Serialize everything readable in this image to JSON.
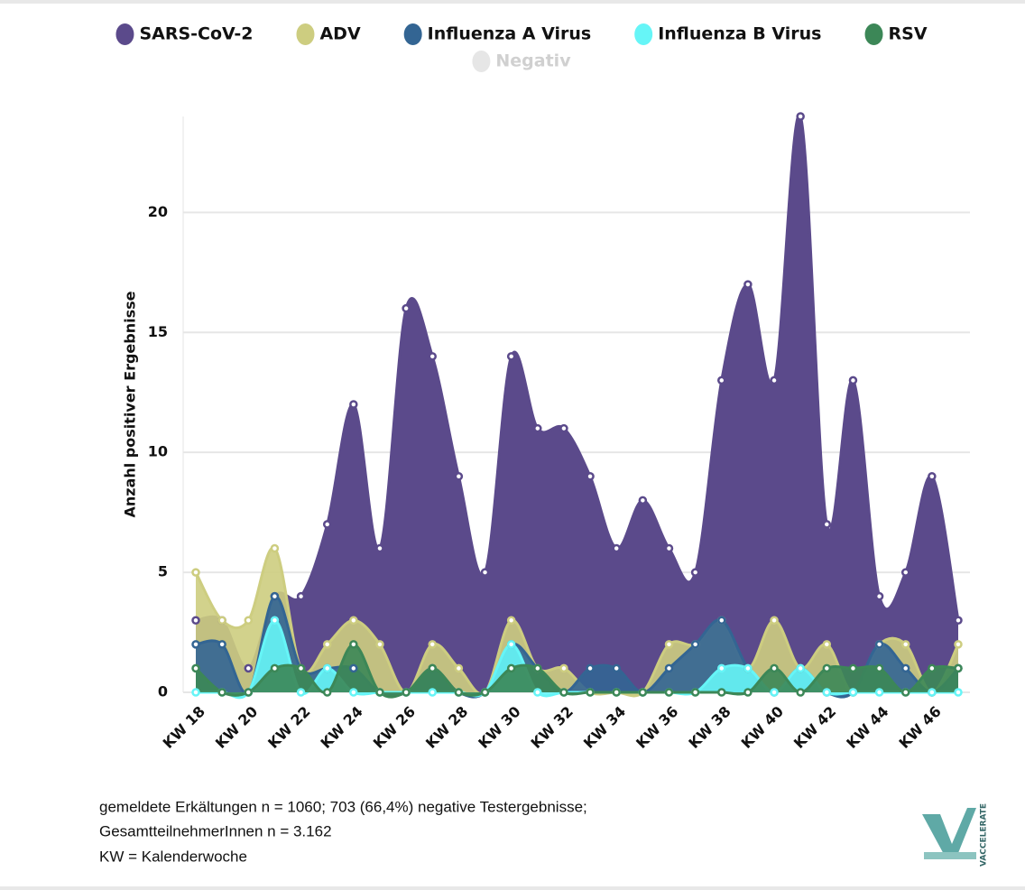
{
  "chart_data": {
    "type": "areaspline",
    "y_label": "Anzahl positiver Ergebnisse",
    "categories": [
      "KW 18",
      null,
      "KW 20",
      null,
      "KW 22",
      null,
      "KW 24",
      null,
      "KW 26",
      null,
      "KW 28",
      null,
      "KW 30",
      null,
      "KW 32",
      null,
      "KW 34",
      null,
      "KW 36",
      null,
      "KW 38",
      null,
      "KW 40",
      null,
      "KW 42",
      null,
      "KW 44",
      null,
      "KW 46",
      null
    ],
    "series": [
      {
        "name": "SARS-CoV-2",
        "color": "#5b4a8b",
        "values": [
          3,
          3,
          1,
          4,
          4,
          7,
          12,
          6,
          16,
          14,
          9,
          5,
          14,
          11,
          11,
          9,
          6,
          8,
          6,
          5,
          13,
          17,
          13,
          24,
          7,
          13,
          4,
          5,
          9,
          3
        ]
      },
      {
        "name": "ADV",
        "color": "#cdcd80",
        "values": [
          5,
          3,
          3,
          6,
          1,
          2,
          3,
          2,
          0,
          2,
          1,
          0,
          3,
          1,
          1,
          0,
          0,
          0,
          2,
          2,
          3,
          1,
          3,
          1,
          2,
          0,
          2,
          2,
          0,
          2
        ]
      },
      {
        "name": "Influenza A Virus",
        "color": "#336593",
        "values": [
          2,
          2,
          0,
          4,
          1,
          1,
          1,
          0,
          0,
          1,
          0,
          0,
          2,
          1,
          0,
          1,
          1,
          0,
          1,
          2,
          3,
          1,
          0,
          1,
          0,
          0,
          2,
          1,
          0,
          1
        ]
      },
      {
        "name": "Influenza B Virus",
        "color": "#66f5f7",
        "values": [
          0,
          0,
          0,
          3,
          0,
          1,
          0,
          0,
          0,
          0,
          0,
          0,
          2,
          0,
          0,
          0,
          0,
          0,
          0,
          0,
          1,
          1,
          0,
          1,
          0,
          0,
          0,
          0,
          0,
          0
        ]
      },
      {
        "name": "RSV",
        "color": "#3c8757",
        "values": [
          1,
          0,
          0,
          1,
          1,
          0,
          2,
          0,
          0,
          1,
          0,
          0,
          1,
          1,
          0,
          0,
          0,
          0,
          0,
          0,
          0,
          0,
          1,
          0,
          1,
          1,
          1,
          0,
          1,
          1
        ]
      },
      {
        "name": "Negativ",
        "color": "#e6e6e6",
        "visible": false
      }
    ],
    "ylim": [
      0,
      24
    ],
    "yticks": [
      0,
      5,
      10,
      15,
      20
    ],
    "grid": true,
    "legend": "top",
    "footnote": [
      "gemeldete Erkältungen n = 1060; 703 (66,4%) negative Testergebnisse;",
      "GesamtteilnehmerInnen n = 3.162",
      "KW = Kalenderwoche"
    ],
    "logo": "VACCELERATE"
  }
}
